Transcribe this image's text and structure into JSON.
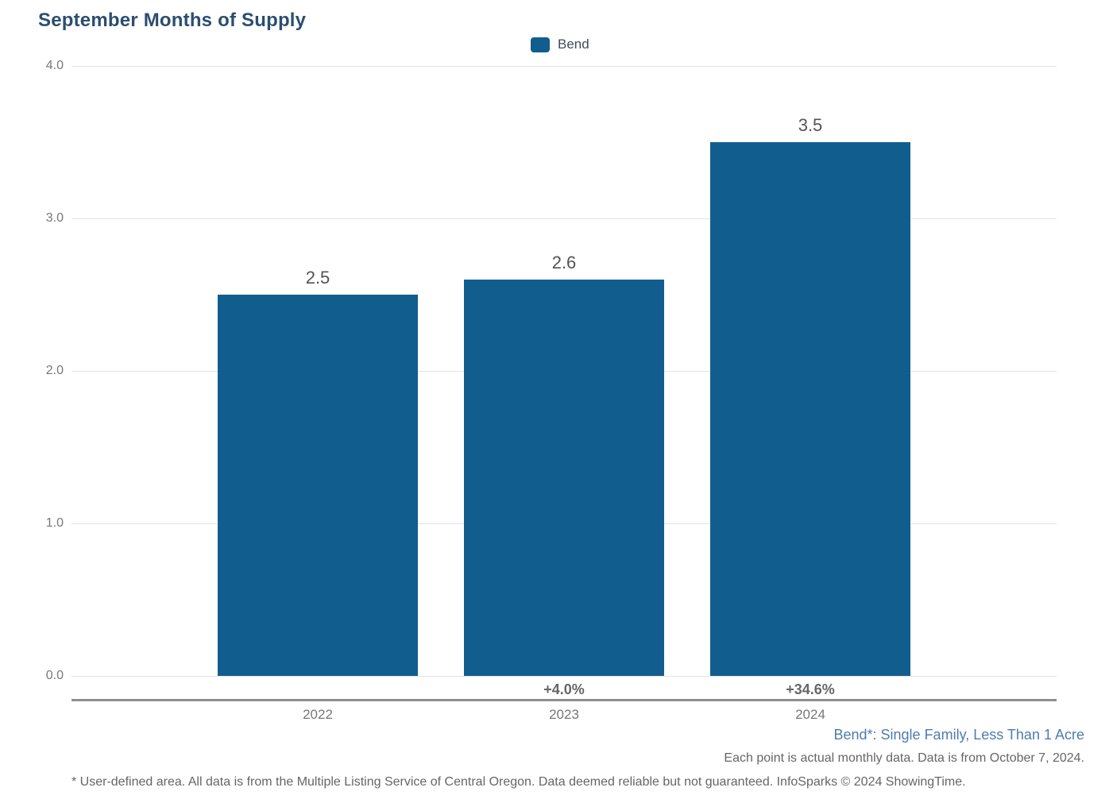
{
  "chart_data": {
    "type": "bar",
    "title": "September Months of Supply",
    "categories": [
      "2022",
      "2023",
      "2024"
    ],
    "series": [
      {
        "name": "Bend",
        "values": [
          2.5,
          2.6,
          3.5
        ]
      }
    ],
    "value_labels": [
      "2.5",
      "2.6",
      "3.5"
    ],
    "pct_change_labels": [
      "",
      "+4.0%",
      "+34.6%"
    ],
    "xlabel": "",
    "ylabel": "",
    "ylim": [
      0,
      4
    ],
    "yticks": [
      "4.0",
      "3.0",
      "2.0",
      "1.0",
      "0.0"
    ],
    "grid": true,
    "legend_position": "top",
    "bar_color": "#115E8E"
  },
  "legend": {
    "items": [
      {
        "label": "Bend",
        "color": "#115E8E"
      }
    ]
  },
  "footnotes": {
    "series_note": "Bend*: Single Family, Less Than 1 Acre",
    "data_note": "Each point is actual monthly data. Data is from October 7, 2024.",
    "disclaimer": "* User-defined area. All data is from the Multiple Listing Service of Central Oregon. Data deemed reliable but not guaranteed. InfoSparks © 2024 ShowingTime."
  },
  "colors": {
    "title": "#2B4E70",
    "bar": "#115E8E",
    "gridline": "#E3E3E3",
    "axis_line": "#8F8F8F",
    "tick_text": "#777777",
    "value_text": "#535353",
    "pct_text": "#666666",
    "footnote_blue": "#4D7CB0",
    "footnote_gray": "#666666"
  }
}
